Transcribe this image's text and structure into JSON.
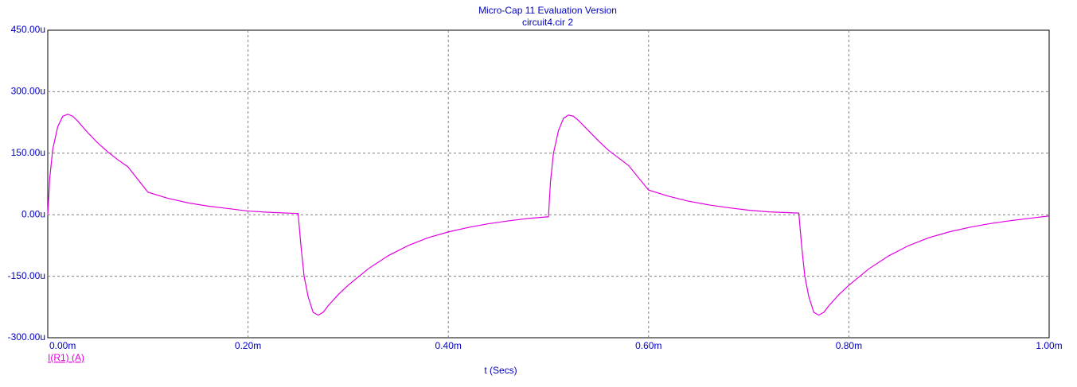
{
  "chart_data": {
    "type": "line",
    "title": "Micro-Cap 11 Evaluation Version",
    "subtitle": "circuit4.cir 2",
    "x_label": "t (Secs)",
    "x": [
      0,
      0.002,
      0.005,
      0.01,
      0.015,
      0.02,
      0.025,
      0.03,
      0.04,
      0.05,
      0.06,
      0.07,
      0.08,
      0.1,
      0.12,
      0.14,
      0.16,
      0.18,
      0.2,
      0.22,
      0.25,
      0.253,
      0.256,
      0.26,
      0.265,
      0.27,
      0.275,
      0.28,
      0.29,
      0.3,
      0.32,
      0.34,
      0.36,
      0.38,
      0.4,
      0.42,
      0.44,
      0.46,
      0.48,
      0.5,
      0.502,
      0.505,
      0.51,
      0.515,
      0.52,
      0.525,
      0.53,
      0.54,
      0.55,
      0.56,
      0.58,
      0.6,
      0.62,
      0.64,
      0.66,
      0.68,
      0.7,
      0.72,
      0.75,
      0.753,
      0.756,
      0.76,
      0.765,
      0.77,
      0.775,
      0.78,
      0.79,
      0.8,
      0.82,
      0.84,
      0.86,
      0.88,
      0.9,
      0.92,
      0.94,
      0.96,
      0.98,
      1.0
    ],
    "series": [
      {
        "name": "I(R1) (A)",
        "color": "#e000e0",
        "values": [
          0,
          90,
          160,
          215,
          240,
          245,
          240,
          228,
          200,
          175,
          153,
          134,
          117,
          55,
          40,
          29,
          21,
          15,
          9,
          6,
          3,
          -80,
          -150,
          -200,
          -238,
          -245,
          -238,
          -222,
          -195,
          -172,
          -132,
          -100,
          -75,
          -56,
          -42,
          -31,
          -22,
          -15,
          -9,
          -5,
          80,
          150,
          205,
          235,
          243,
          240,
          230,
          205,
          180,
          157,
          120,
          60,
          45,
          33,
          24,
          17,
          11,
          7,
          4,
          -80,
          -150,
          -200,
          -238,
          -245,
          -238,
          -222,
          -195,
          -172,
          -132,
          -100,
          -75,
          -56,
          -42,
          -31,
          -22,
          -15,
          -9,
          -3
        ]
      }
    ],
    "xlim": [
      0,
      1
    ],
    "xticks": [
      {
        "value": 0,
        "label": "0.00m"
      },
      {
        "value": 0.2,
        "label": "0.20m"
      },
      {
        "value": 0.4,
        "label": "0.40m"
      },
      {
        "value": 0.6,
        "label": "0.60m"
      },
      {
        "value": 0.8,
        "label": "0.80m"
      },
      {
        "value": 1.0,
        "label": "1.00m"
      }
    ],
    "ylim": [
      -300,
      450
    ],
    "yticks": [
      {
        "value": -300,
        "label": "-300.00u"
      },
      {
        "value": -150,
        "label": "-150.00u"
      },
      {
        "value": 0,
        "label": "0.00u"
      },
      {
        "value": 150,
        "label": "150.00u"
      },
      {
        "value": 300,
        "label": "300.00u"
      },
      {
        "value": 450,
        "label": "450.00u"
      }
    ],
    "grid": true
  }
}
